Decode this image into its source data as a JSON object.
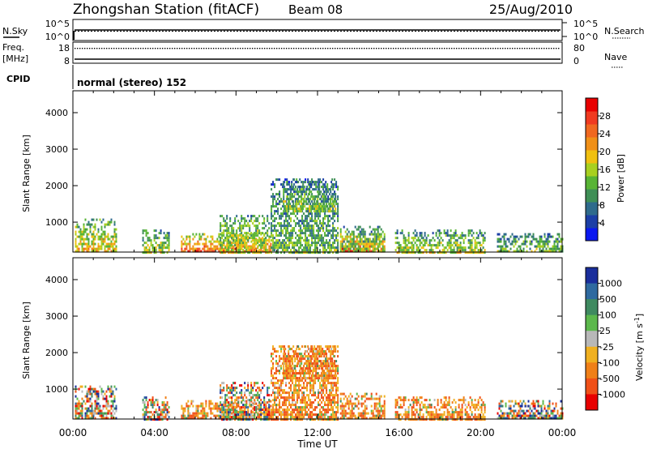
{
  "header": {
    "station": "Zhongshan Station (fitACF)",
    "beam": "Beam 08",
    "date": "25/Aug/2010"
  },
  "noise_panel": {
    "left_label": "N.Sky",
    "right_label": "N.Search",
    "left_ticks": [
      "10^5",
      "10^0"
    ],
    "right_ticks": [
      "10^5",
      "10^0"
    ]
  },
  "freq_panel": {
    "left_label_line1": "Freq.",
    "left_label_line2": "[MHz]",
    "right_label": "Nave",
    "left_ticks": [
      "18",
      "8"
    ],
    "right_ticks": [
      "80",
      "0"
    ],
    "freq_baseline_mhz": 9,
    "nave_level": 58
  },
  "cpid": {
    "label": "CPID",
    "value": "normal (stereo) 152"
  },
  "chart_data": [
    {
      "type": "heatmap",
      "parameter": "power",
      "ylabel": "Slant Range [km]",
      "xlabel": "",
      "x_tick_labels": [
        "00:00",
        "04:00",
        "08:00",
        "12:00",
        "16:00",
        "20:00",
        "00:00"
      ],
      "y_ticks": [
        1000,
        2000,
        3000,
        4000
      ],
      "xlim_hours": [
        0,
        24
      ],
      "ylim_km": [
        180,
        4600
      ],
      "colorbar": {
        "label": "Power [dB]",
        "tick_labels": [
          "4",
          "8",
          "12",
          "16",
          "20",
          "24",
          "28"
        ],
        "colors": [
          "#0a18f0",
          "#1c3fa6",
          "#2f6b8c",
          "#3f8f56",
          "#58b435",
          "#a8d020",
          "#f0c010",
          "#f09018",
          "#f06820",
          "#f03a20",
          "#e80000"
        ],
        "scale_min": 0,
        "scale_max": 33
      },
      "echo_regions": [
        {
          "t_start": 0.1,
          "t_end": 2.1,
          "r_min": 200,
          "r_max": 1100,
          "level": 0.55
        },
        {
          "t_start": 3.4,
          "t_end": 4.7,
          "r_min": 200,
          "r_max": 800,
          "level": 0.45
        },
        {
          "t_start": 5.3,
          "t_end": 9.7,
          "r_min": 200,
          "r_max": 700,
          "level": 0.75
        },
        {
          "t_start": 7.2,
          "t_end": 9.6,
          "r_min": 200,
          "r_max": 1200,
          "level": 0.5
        },
        {
          "t_start": 9.7,
          "t_end": 13.0,
          "r_min": 200,
          "r_max": 2200,
          "level": 0.35
        },
        {
          "t_start": 10.3,
          "t_end": 12.9,
          "r_min": 1300,
          "r_max": 2200,
          "level": 0.4
        },
        {
          "t_start": 13.1,
          "t_end": 15.3,
          "r_min": 200,
          "r_max": 700,
          "level": 0.85
        },
        {
          "t_start": 13.1,
          "t_end": 15.3,
          "r_min": 200,
          "r_max": 900,
          "level": 0.45
        },
        {
          "t_start": 15.8,
          "t_end": 20.2,
          "r_min": 200,
          "r_max": 800,
          "level": 0.45
        },
        {
          "t_start": 20.8,
          "t_end": 24.0,
          "r_min": 200,
          "r_max": 700,
          "level": 0.4
        }
      ]
    },
    {
      "type": "heatmap",
      "parameter": "velocity",
      "ylabel": "Slant Range [km]",
      "xlabel": "Time UT",
      "x_tick_labels": [
        "00:00",
        "04:00",
        "08:00",
        "12:00",
        "16:00",
        "20:00",
        "00:00"
      ],
      "y_ticks": [
        1000,
        2000,
        3000,
        4000
      ],
      "xlim_hours": [
        0,
        24
      ],
      "ylim_km": [
        180,
        4600
      ],
      "colorbar": {
        "label": "Velocity [m s",
        "label_superscript": "-1",
        "label_close": "]",
        "tick_labels": [
          "1000",
          "500",
          "100",
          "25",
          "-25",
          "-100",
          "-500",
          "-1000"
        ],
        "colors": [
          "#1a2e9c",
          "#2f6aa0",
          "#3f8a60",
          "#5cb84c",
          "#b8b8b8",
          "#f0b020",
          "#f08018",
          "#f05018",
          "#e80000"
        ],
        "scale_min": -1200,
        "scale_max": 1200
      },
      "echo_regions": [
        {
          "t_start": 0.1,
          "t_end": 2.1,
          "r_min": 200,
          "r_max": 1100,
          "mode": "mixed"
        },
        {
          "t_start": 3.4,
          "t_end": 4.7,
          "r_min": 200,
          "r_max": 800,
          "mode": "mixed"
        },
        {
          "t_start": 5.3,
          "t_end": 9.7,
          "r_min": 200,
          "r_max": 700,
          "mode": "away"
        },
        {
          "t_start": 7.2,
          "t_end": 9.6,
          "r_min": 200,
          "r_max": 1200,
          "mode": "mixed"
        },
        {
          "t_start": 9.7,
          "t_end": 13.0,
          "r_min": 200,
          "r_max": 2200,
          "mode": "away"
        },
        {
          "t_start": 10.3,
          "t_end": 12.9,
          "r_min": 1300,
          "r_max": 2200,
          "mode": "away"
        },
        {
          "t_start": 13.1,
          "t_end": 15.3,
          "r_min": 200,
          "r_max": 900,
          "mode": "away"
        },
        {
          "t_start": 15.8,
          "t_end": 20.2,
          "r_min": 200,
          "r_max": 800,
          "mode": "away"
        },
        {
          "t_start": 20.8,
          "t_end": 24.0,
          "r_min": 200,
          "r_max": 700,
          "mode": "mixed"
        }
      ]
    }
  ]
}
